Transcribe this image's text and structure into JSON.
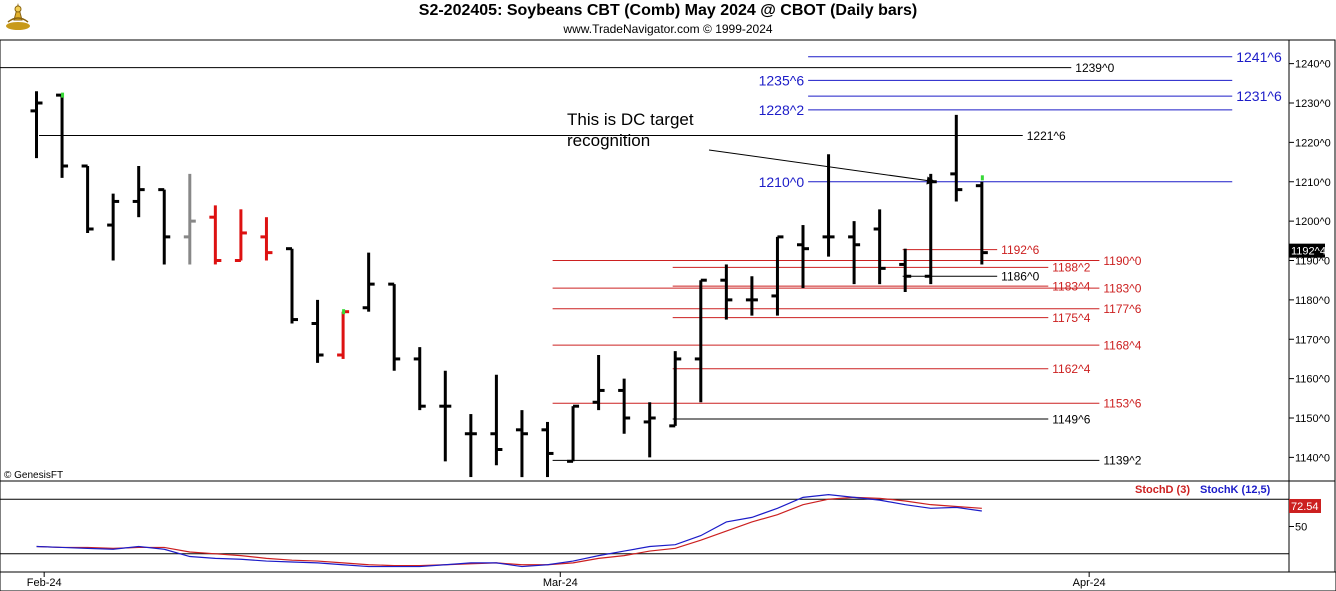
{
  "header": {
    "title": "S2-202405:  Soybeans CBT (Comb) May 2024 @ CBOT  (Daily bars)",
    "subtitle": "www.TradeNavigator.com © 1999-2024",
    "logo_icon": "trade-navigator-logo-icon",
    "copyright_label": "© GenesisFT"
  },
  "chart_data": {
    "type": "bar",
    "style": "ohlc",
    "price_axis": {
      "ylim": [
        1134,
        1246
      ],
      "ticks": [
        "1240^0",
        "1230^0",
        "1220^0",
        "1210^0",
        "1200^0",
        "1190^0",
        "1180^0",
        "1170^0",
        "1160^0",
        "1150^0",
        "1140^0"
      ],
      "tick_values": [
        1240,
        1230,
        1220,
        1210,
        1200,
        1190,
        1180,
        1170,
        1160,
        1150,
        1140
      ],
      "last_price_label": "1192^4",
      "last_price_value": 1192.5
    },
    "x_axis": {
      "labels": [
        {
          "text": "Feb-24",
          "bar": 0.3
        },
        {
          "text": "Mar-24",
          "bar": 20.5
        },
        {
          "text": "Apr-24",
          "bar": 41.2
        }
      ],
      "grid": false
    },
    "bars": [
      {
        "o": 1228,
        "h": 1233,
        "l": 1216,
        "c": 1230,
        "color": "black"
      },
      {
        "o": 1232,
        "h": 1232,
        "l": 1211,
        "c": 1214,
        "color": "black"
      },
      {
        "o": 1214,
        "h": 1214,
        "l": 1197,
        "c": 1198,
        "color": "black"
      },
      {
        "o": 1199,
        "h": 1207,
        "l": 1190,
        "c": 1205,
        "color": "black"
      },
      {
        "o": 1205,
        "h": 1214,
        "l": 1201,
        "c": 1208,
        "color": "black"
      },
      {
        "o": 1208,
        "h": 1208,
        "l": 1189,
        "c": 1196,
        "color": "black"
      },
      {
        "o": 1196,
        "h": 1212,
        "l": 1189,
        "c": 1200,
        "color": "gray"
      },
      {
        "o": 1201,
        "h": 1204,
        "l": 1189,
        "c": 1190,
        "color": "red"
      },
      {
        "o": 1190,
        "h": 1203,
        "l": 1190,
        "c": 1197,
        "color": "red"
      },
      {
        "o": 1196,
        "h": 1201,
        "l": 1190,
        "c": 1192,
        "color": "red"
      },
      {
        "o": 1193,
        "h": 1193,
        "l": 1174,
        "c": 1175,
        "color": "black"
      },
      {
        "o": 1174,
        "h": 1180,
        "l": 1164,
        "c": 1166,
        "color": "black"
      },
      {
        "o": 1166,
        "h": 1177,
        "l": 1165,
        "c": 1177,
        "color": "red"
      },
      {
        "o": 1178,
        "h": 1192,
        "l": 1177,
        "c": 1184,
        "color": "black"
      },
      {
        "o": 1184,
        "h": 1184,
        "l": 1162,
        "c": 1165,
        "color": "black"
      },
      {
        "o": 1165,
        "h": 1168,
        "l": 1152,
        "c": 1153,
        "color": "black"
      },
      {
        "o": 1153,
        "h": 1162,
        "l": 1139,
        "c": 1153,
        "color": "black"
      },
      {
        "o": 1146,
        "h": 1151,
        "l": 1135,
        "c": 1146,
        "color": "black"
      },
      {
        "o": 1146,
        "h": 1161,
        "l": 1138,
        "c": 1142,
        "color": "black"
      },
      {
        "o": 1147,
        "h": 1152,
        "l": 1135,
        "c": 1146,
        "color": "black"
      },
      {
        "o": 1147,
        "h": 1149,
        "l": 1135,
        "c": 1141,
        "color": "black"
      },
      {
        "o": 1139,
        "h": 1153,
        "l": 1139,
        "c": 1153,
        "color": "black"
      },
      {
        "o": 1154,
        "h": 1166,
        "l": 1152,
        "c": 1157,
        "color": "black"
      },
      {
        "o": 1157,
        "h": 1160,
        "l": 1146,
        "c": 1150,
        "color": "black"
      },
      {
        "o": 1149,
        "h": 1154,
        "l": 1140,
        "c": 1150,
        "color": "black"
      },
      {
        "o": 1148,
        "h": 1167,
        "l": 1148,
        "c": 1165,
        "color": "black"
      },
      {
        "o": 1165,
        "h": 1185,
        "l": 1154,
        "c": 1185,
        "color": "black"
      },
      {
        "o": 1185,
        "h": 1189,
        "l": 1175,
        "c": 1180,
        "color": "black"
      },
      {
        "o": 1180,
        "h": 1186,
        "l": 1176,
        "c": 1180,
        "color": "black"
      },
      {
        "o": 1181,
        "h": 1196,
        "l": 1176,
        "c": 1196,
        "color": "black"
      },
      {
        "o": 1194,
        "h": 1199,
        "l": 1183,
        "c": 1193,
        "color": "black"
      },
      {
        "o": 1196,
        "h": 1217,
        "l": 1191,
        "c": 1196,
        "color": "black"
      },
      {
        "o": 1196,
        "h": 1200,
        "l": 1184,
        "c": 1194,
        "color": "black"
      },
      {
        "o": 1198,
        "h": 1203,
        "l": 1184,
        "c": 1188,
        "color": "black"
      },
      {
        "o": 1189,
        "h": 1193,
        "l": 1182,
        "c": 1186,
        "color": "black"
      },
      {
        "o": 1186,
        "h": 1212,
        "l": 1184,
        "c": 1210,
        "color": "black"
      },
      {
        "o": 1212,
        "h": 1227,
        "l": 1205,
        "c": 1208,
        "color": "black"
      },
      {
        "o": 1209,
        "h": 1210,
        "l": 1189,
        "c": 1192,
        "color": "black"
      }
    ],
    "marks": [
      {
        "bar": 1,
        "price": 1232,
        "color": "#37d837"
      },
      {
        "bar": 12,
        "price": 1177,
        "color": "#37d837"
      },
      {
        "bar": 37,
        "price": 1211,
        "color": "#37d837"
      }
    ],
    "levels": [
      {
        "label": "1241^6",
        "value": 1241.75,
        "color": "#1c1cc8",
        "text_color": "#1c1cc8",
        "x0": 30.2,
        "x1": 46.8,
        "label_side": "right",
        "label_x": 46.8
      },
      {
        "label": "1239^0",
        "value": 1239.0,
        "color": "#000000",
        "text_color": "#000000",
        "x0": -2,
        "x1": 40.5,
        "label_side": "right"
      },
      {
        "label": "1235^6",
        "value": 1235.75,
        "color": "#1c1cc8",
        "text_color": "#1c1cc8",
        "x0": 30.2,
        "x1": 46.8,
        "label_side": "left"
      },
      {
        "label": "1231^6",
        "value": 1231.75,
        "color": "#1c1cc8",
        "text_color": "#1c1cc8",
        "x0": 30.2,
        "x1": 46.8,
        "label_side": "right",
        "label_x": 46.8
      },
      {
        "label": "1228^2",
        "value": 1228.25,
        "color": "#1c1cc8",
        "text_color": "#1c1cc8",
        "x0": 30.2,
        "x1": 46.8,
        "label_side": "left"
      },
      {
        "label": "1221^6",
        "value": 1221.75,
        "color": "#000000",
        "text_color": "#000000",
        "x0": 0.1,
        "x1": 38.6,
        "label_side": "right"
      },
      {
        "label": "1210^0",
        "value": 1210.0,
        "color": "#1c1cc8",
        "text_color": "#1c1cc8",
        "x0": 30.2,
        "x1": 46.8,
        "label_side": "left"
      },
      {
        "label": "1192^6",
        "value": 1192.75,
        "color": "#cc2020",
        "text_color": "#cc2020",
        "x0": 33.9,
        "x1": 37.6,
        "label_side": "right"
      },
      {
        "label": "1190^0",
        "value": 1190.0,
        "color": "#cc2020",
        "text_color": "#cc2020",
        "x0": 20.2,
        "x1": 41.6,
        "label_side": "right"
      },
      {
        "label": "1188^2",
        "value": 1188.25,
        "color": "#cc2020",
        "text_color": "#cc2020",
        "x0": 24.9,
        "x1": 39.6,
        "label_side": "right"
      },
      {
        "label": "1186^0",
        "value": 1186.0,
        "color": "#000000",
        "text_color": "#000000",
        "x0": 33.9,
        "x1": 37.6,
        "label_side": "right"
      },
      {
        "label": "1183^0",
        "value": 1183.0,
        "color": "#cc2020",
        "text_color": "#cc2020",
        "x0": 20.2,
        "x1": 41.6,
        "label_side": "right"
      },
      {
        "label": "1183^4",
        "value": 1183.5,
        "color": "#cc2020",
        "text_color": "#cc2020",
        "x0": 24.9,
        "x1": 39.6,
        "label_side": "right"
      },
      {
        "label": "1177^6",
        "value": 1177.75,
        "color": "#cc2020",
        "text_color": "#cc2020",
        "x0": 20.2,
        "x1": 41.6,
        "label_side": "right"
      },
      {
        "label": "1175^4",
        "value": 1175.5,
        "color": "#cc2020",
        "text_color": "#cc2020",
        "x0": 24.9,
        "x1": 39.6,
        "label_side": "right"
      },
      {
        "label": "1168^4",
        "value": 1168.5,
        "color": "#cc2020",
        "text_color": "#cc2020",
        "x0": 20.2,
        "x1": 41.6,
        "label_side": "right"
      },
      {
        "label": "1162^4",
        "value": 1162.5,
        "color": "#cc2020",
        "text_color": "#cc2020",
        "x0": 24.9,
        "x1": 39.6,
        "label_side": "right"
      },
      {
        "label": "1153^6",
        "value": 1153.75,
        "color": "#cc2020",
        "text_color": "#cc2020",
        "x0": 20.2,
        "x1": 41.6,
        "label_side": "right"
      },
      {
        "label": "1149^6",
        "value": 1149.75,
        "color": "#000000",
        "text_color": "#000000",
        "x0": 24.9,
        "x1": 39.6,
        "label_side": "right"
      },
      {
        "label": "1139^2",
        "value": 1139.25,
        "color": "#000000",
        "text_color": "#000000",
        "x0": 20.2,
        "x1": 41.6,
        "label_side": "right"
      }
    ],
    "annotation": {
      "lines": [
        "This is DC target",
        "recognition"
      ],
      "arrow_to": {
        "bar": 35.2,
        "price": 1210
      }
    },
    "stochastic": {
      "legend": [
        {
          "name": "StochD (3)",
          "color": "#cc2020"
        },
        {
          "name": "StochK (12,5)",
          "color": "#1c1cc8"
        }
      ],
      "ylim": [
        0,
        100
      ],
      "ticks": [
        "50"
      ],
      "tick_values": [
        50
      ],
      "levels": [
        80,
        20
      ],
      "last_value_label": "72.54",
      "last_value": 72.54,
      "k": [
        28,
        27,
        26,
        25,
        28,
        25,
        17,
        15,
        14,
        12,
        11,
        10,
        8,
        6,
        6,
        6,
        8,
        10,
        10,
        6,
        8,
        12,
        18,
        23,
        28,
        30,
        40,
        55,
        60,
        70,
        82,
        85,
        82,
        79,
        74,
        70,
        71,
        67
      ],
      "d": [
        28,
        27,
        27,
        26,
        27,
        27,
        22,
        20,
        18,
        15,
        13,
        12,
        10,
        8,
        7,
        7,
        8,
        9,
        10,
        8,
        8,
        10,
        15,
        18,
        23,
        26,
        35,
        45,
        55,
        63,
        74,
        80,
        82,
        81,
        78,
        74,
        72,
        70
      ]
    }
  }
}
